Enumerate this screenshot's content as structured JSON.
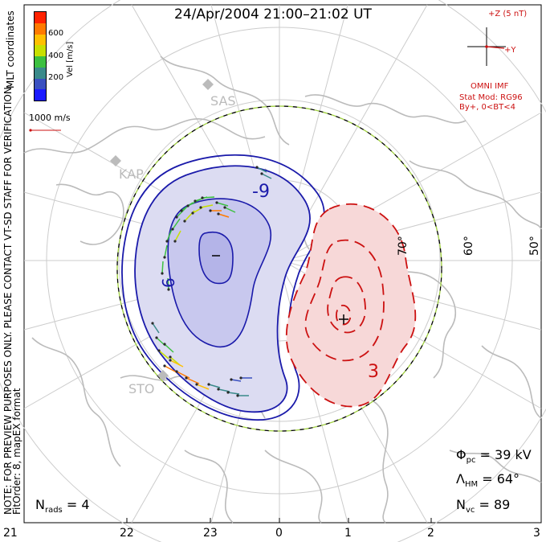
{
  "title": "24/Apr/2004 21:00–21:02 UT",
  "color_bar": {
    "ticks": [
      "600",
      "400",
      "200"
    ],
    "label": "Vel [m/s]",
    "colors": [
      "#ff2200",
      "#ff7a00",
      "#ffc000",
      "#c8e000",
      "#3cc040",
      "#3a8a8a",
      "#3a50c0",
      "#1a1aff"
    ]
  },
  "coordinate_system": "MLT coordinates",
  "reference_vector": "1000 m/s",
  "watermark": "NOTE: FOR PREVIEW PURPOSES ONLY. PLEASE CONTACT VT-SD STAFF FOR VERIFICATION.",
  "fit_info": "FitOrder: 8, mapEX format",
  "stations": [
    "SAS",
    "KAP",
    "STO"
  ],
  "latitude_labels": [
    "70°",
    "60°",
    "50°"
  ],
  "contour_labels": [
    "-9",
    "6",
    "-",
    "+",
    "3"
  ],
  "imf": {
    "scale_label": "+Z (5 nT)",
    "y_label": "+Y",
    "source": "OMNI IMF",
    "model_line1": "Stat Mod: RG96",
    "model_line2": "By+, 0<BT<4"
  },
  "stats": {
    "phi_symbol": "Φ",
    "phi_sub": "pc",
    "phi_value": "= 39 kV",
    "lambda_symbol": "Λ",
    "lambda_sub": "HM",
    "lambda_value": "= 64°",
    "nvc_symbol": "N",
    "nvc_sub": "vc",
    "nvc_value": "= 89",
    "nrads_symbol": "N",
    "nrads_sub": "rads",
    "nrads_value": "= 4"
  },
  "mlt_axis": [
    "21",
    "22",
    "23",
    "0",
    "1",
    "2",
    "3"
  ],
  "colors": {
    "negative_contour": "#1a1aaa",
    "negative_fill_light": "#dcdcf2",
    "negative_fill_dark": "#b4b4e8",
    "positive_contour": "#cc1111",
    "positive_fill": "#f7d8d8",
    "boundary_dash": "#a0d040",
    "coastline": "#bbbbbb",
    "grid": "#cccccc"
  }
}
